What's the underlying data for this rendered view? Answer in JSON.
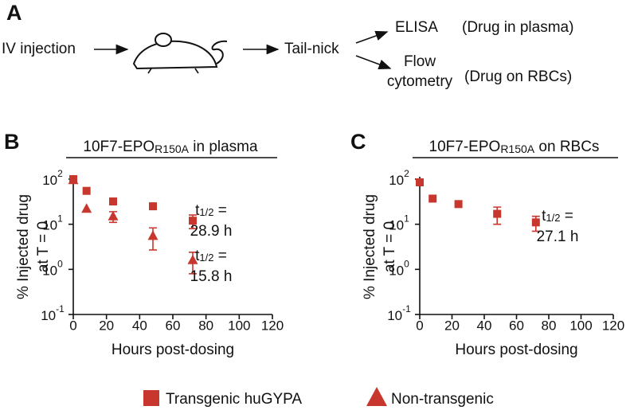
{
  "diagram": {
    "label": "A",
    "steps": [
      "IV injection",
      "Tail-nick"
    ],
    "outputs": [
      {
        "method": [
          "ELISA"
        ],
        "note": "(Drug in plasma)"
      },
      {
        "method": [
          "Flow",
          "cytometry"
        ],
        "note": "(Drug on RBCs)"
      }
    ]
  },
  "chart_data": [
    {
      "type": "scatter",
      "panel": "B",
      "title": [
        "10F7-EPO",
        "R150A",
        " in plasma"
      ],
      "ylabel": [
        "% Injected drug",
        "at T = 0"
      ],
      "xlabel": "Hours post-dosing",
      "xlim": [
        0,
        120
      ],
      "xticks": [
        0,
        20,
        40,
        60,
        80,
        100,
        120
      ],
      "ylim": [
        0.1,
        100
      ],
      "log_y": true,
      "yticks": [
        {
          "value": 0.1,
          "label": "10",
          "sup": "-1"
        },
        {
          "value": 1,
          "label": "10",
          "sup": "0"
        },
        {
          "value": 10,
          "label": "10",
          "sup": "1"
        },
        {
          "value": 100,
          "label": "10",
          "sup": "2"
        }
      ],
      "legend": "bottom",
      "series": [
        {
          "name": "Transgenic huGYPA",
          "marker": "square",
          "color": "#c8372d",
          "x": [
            0,
            8,
            24,
            48,
            72
          ],
          "values": [
            100,
            55,
            32,
            25,
            12
          ],
          "err": [
            null,
            null,
            null,
            null,
            4
          ]
        },
        {
          "name": "Non-transgenic",
          "marker": "triangle",
          "color": "#c8372d",
          "x": [
            0,
            8,
            24,
            48,
            72
          ],
          "values": [
            95,
            22,
            15,
            5.5,
            1.6
          ],
          "err": [
            null,
            null,
            4,
            2.8,
            0.8
          ]
        }
      ],
      "annotations": [
        {
          "symbol": "t",
          "sub": "1/2",
          "eq": " =",
          "result": "28.9 h"
        },
        {
          "symbol": "t",
          "sub": "1/2",
          "eq": " =",
          "result": "15.8 h"
        }
      ]
    },
    {
      "type": "scatter",
      "panel": "C",
      "title": [
        "10F7-EPO",
        "R150A",
        " on RBCs"
      ],
      "ylabel": [
        "% Injected drug",
        "at T = 0"
      ],
      "xlabel": "Hours post-dosing",
      "xlim": [
        0,
        120
      ],
      "xticks": [
        0,
        20,
        40,
        60,
        80,
        100,
        120
      ],
      "ylim": [
        0.1,
        100
      ],
      "log_y": true,
      "yticks": [
        {
          "value": 0.1,
          "label": "10",
          "sup": "-1"
        },
        {
          "value": 1,
          "label": "10",
          "sup": "0"
        },
        {
          "value": 10,
          "label": "10",
          "sup": "1"
        },
        {
          "value": 100,
          "label": "10",
          "sup": "2"
        }
      ],
      "series": [
        {
          "marker": "square",
          "color": "#c8372d",
          "x": [
            0,
            8,
            24,
            48,
            72
          ],
          "values": [
            85,
            37,
            28,
            17,
            11
          ],
          "err": [
            null,
            null,
            null,
            7,
            4
          ]
        }
      ],
      "annotations": [
        {
          "symbol": "t",
          "sub": "1/2",
          "eq": " =",
          "result": "27.1 h"
        }
      ]
    }
  ]
}
